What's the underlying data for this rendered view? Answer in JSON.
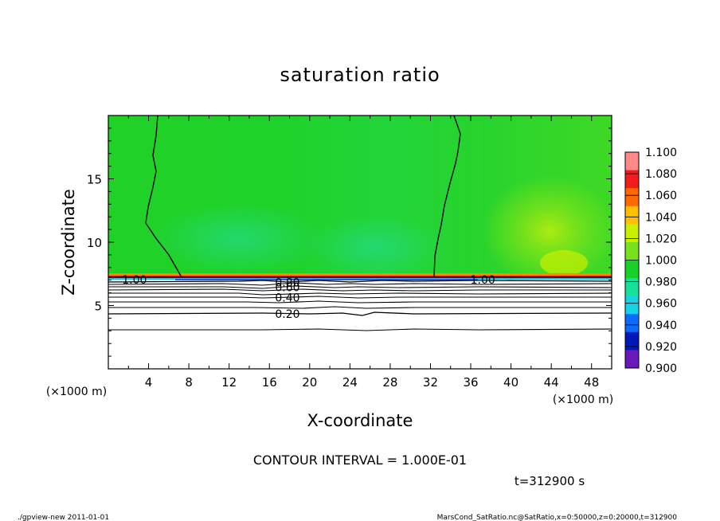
{
  "chart_data": {
    "type": "heatmap",
    "title": "saturation ratio",
    "xlabel": "X-coordinate",
    "ylabel": "Z-coordinate",
    "x_unit_label": "(×1000 m)",
    "y_unit_label": "(×1000 m)",
    "xlim": [
      0,
      50
    ],
    "ylim": [
      0,
      20
    ],
    "x_ticks": [
      "4",
      "8",
      "12",
      "16",
      "20",
      "24",
      "28",
      "32",
      "36",
      "40",
      "44",
      "48"
    ],
    "y_ticks": [
      "5",
      "10",
      "15"
    ],
    "colorbar_levels": [
      "1.100",
      "1.080",
      "1.060",
      "1.040",
      "1.020",
      "1.000",
      "0.980",
      "0.960",
      "0.940",
      "0.920",
      "0.900"
    ],
    "colorbar_colors": [
      "#ff8a8a",
      "#f21c1c",
      "#ff6a00",
      "#ffc000",
      "#c8f000",
      "#78e01c",
      "#19cf2a",
      "#18e09a",
      "#15d4e8",
      "#0a6cff",
      "#0018b8",
      "#6a18b8"
    ],
    "contour_labels": [
      {
        "text": "1.00",
        "x": 2.6,
        "z": 7.1
      },
      {
        "text": "1.00",
        "x": 37.2,
        "z": 7.1
      },
      {
        "text": "0.40",
        "x": 17.8,
        "z": 5.7
      },
      {
        "text": "0.20",
        "x": 17.8,
        "z": 4.4
      },
      {
        "text": "0.60",
        "x": 17.8,
        "z": 6.5
      },
      {
        "text": "0.80",
        "x": 17.8,
        "z": 6.9
      }
    ],
    "contour_interval": "CONTOUR INTERVAL = 1.000E-01",
    "time_label": "t=312900 s",
    "saturation_layer_z": 7.1
  },
  "footer": {
    "left": "./gpview-new   2011-01-01",
    "right": "MarsCond_SatRatio.nc@SatRatio,x=0:50000,z=0:20000,t=312900"
  }
}
